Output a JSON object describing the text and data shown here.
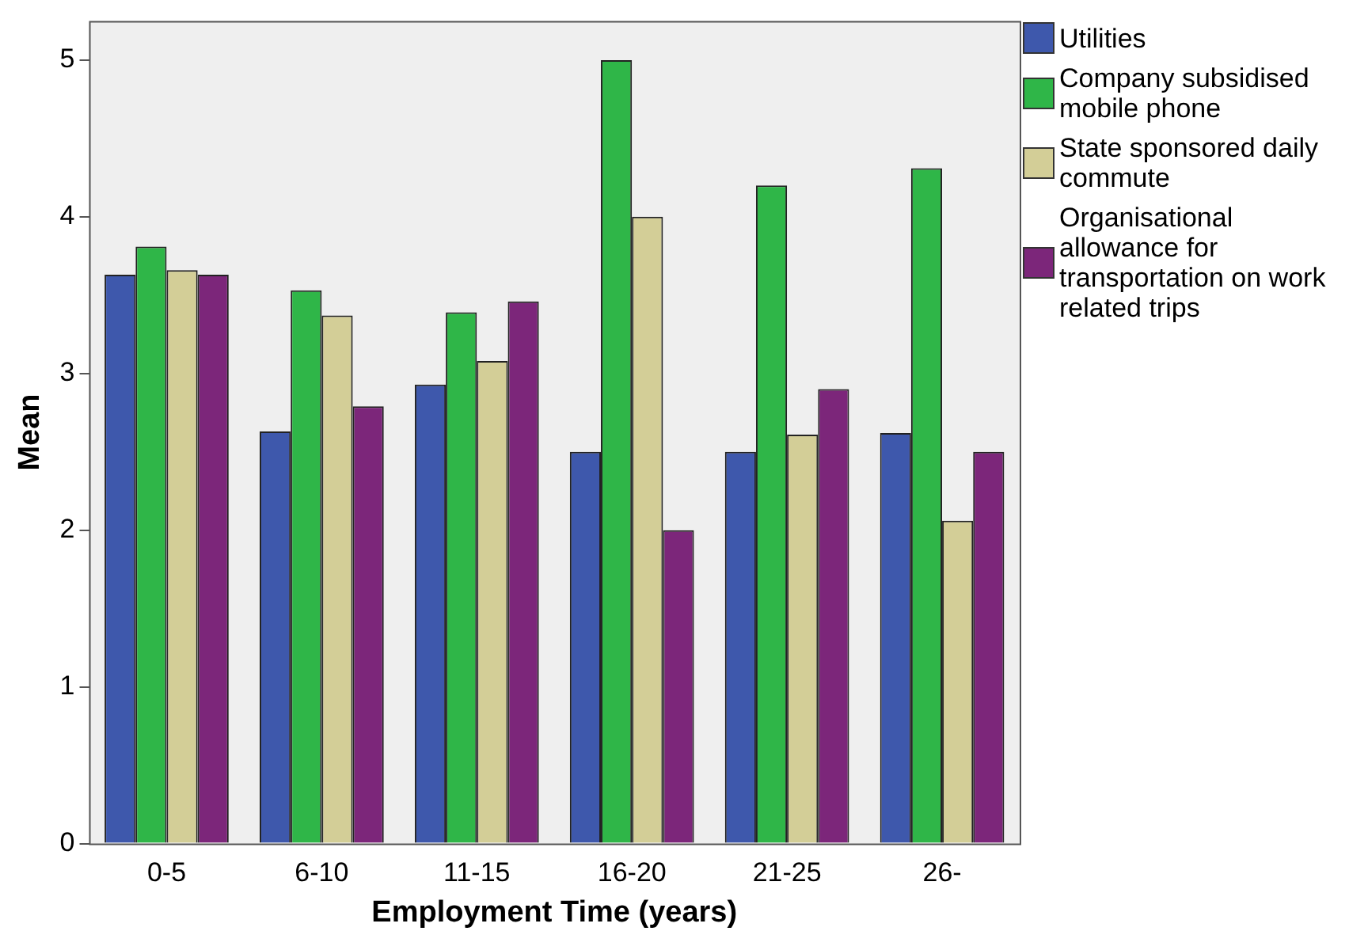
{
  "chart_data": {
    "type": "bar",
    "xlabel": "Employment Time (years)",
    "ylabel": "Mean",
    "categories": [
      "0-5",
      "6-10",
      "11-15",
      "16-20",
      "21-25",
      "26-"
    ],
    "series": [
      {
        "name": "Utilities",
        "color": "#3e58ac",
        "values": [
          3.63,
          2.63,
          2.93,
          2.5,
          2.5,
          2.62
        ]
      },
      {
        "name": "Company subsidised mobile phone",
        "color": "#2fb648",
        "values": [
          3.81,
          3.53,
          3.39,
          5.0,
          4.2,
          4.31
        ]
      },
      {
        "name": "State sponsored daily commute",
        "color": "#d3ce97",
        "values": [
          3.66,
          3.37,
          3.08,
          4.0,
          2.61,
          2.06
        ]
      },
      {
        "name": "Organisational allowance for transportation on work related trips",
        "color": "#7c267a",
        "values": [
          3.63,
          2.79,
          3.46,
          2.0,
          2.9,
          2.5
        ]
      }
    ],
    "ylim": [
      0,
      5.25
    ],
    "yticks": [
      0,
      1,
      2,
      3,
      4,
      5
    ],
    "grid": false,
    "legend": "right"
  }
}
